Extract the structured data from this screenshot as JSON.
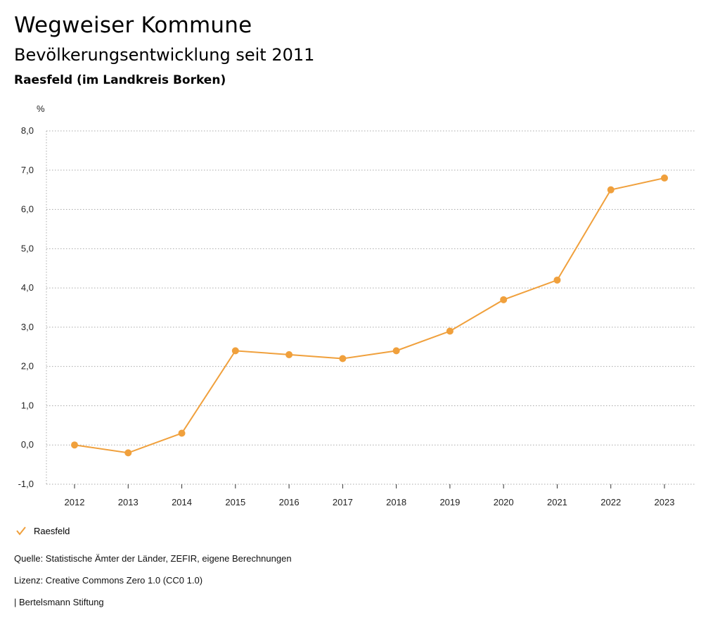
{
  "header": {
    "title": "Wegweiser Kommune",
    "subtitle": "Bevölkerungsentwicklung seit 2011",
    "region": "Raesfeld (im Landkreis Borken)"
  },
  "colors": {
    "series": "#f0a03c",
    "grid": "#aaaaaa",
    "axis": "#333333"
  },
  "chart_data": {
    "type": "line",
    "title": "Bevölkerungsentwicklung seit 2011",
    "ylabel": "%",
    "xlabel": "",
    "ylim": [
      -1,
      8
    ],
    "yticks": [
      -1,
      0,
      1,
      2,
      3,
      4,
      5,
      6,
      7,
      8
    ],
    "ytick_labels": [
      "-1,0",
      "0,0",
      "1,0",
      "2,0",
      "3,0",
      "4,0",
      "5,0",
      "6,0",
      "7,0",
      "8,0"
    ],
    "categories": [
      "2012",
      "2013",
      "2014",
      "2015",
      "2016",
      "2017",
      "2018",
      "2019",
      "2020",
      "2021",
      "2022",
      "2023"
    ],
    "series": [
      {
        "name": "Raesfeld",
        "values": [
          0.0,
          -0.2,
          0.3,
          2.4,
          2.3,
          2.2,
          2.4,
          2.9,
          3.7,
          4.2,
          6.5,
          6.8
        ]
      }
    ],
    "grid": true,
    "legend": "bottom-left"
  },
  "footer": {
    "source": "Quelle: Statistische Ämter der Länder, ZEFIR, eigene Berechnungen",
    "license": "Lizenz: Creative Commons Zero 1.0 (CC0 1.0)",
    "publisher": "| Bertelsmann Stiftung"
  }
}
